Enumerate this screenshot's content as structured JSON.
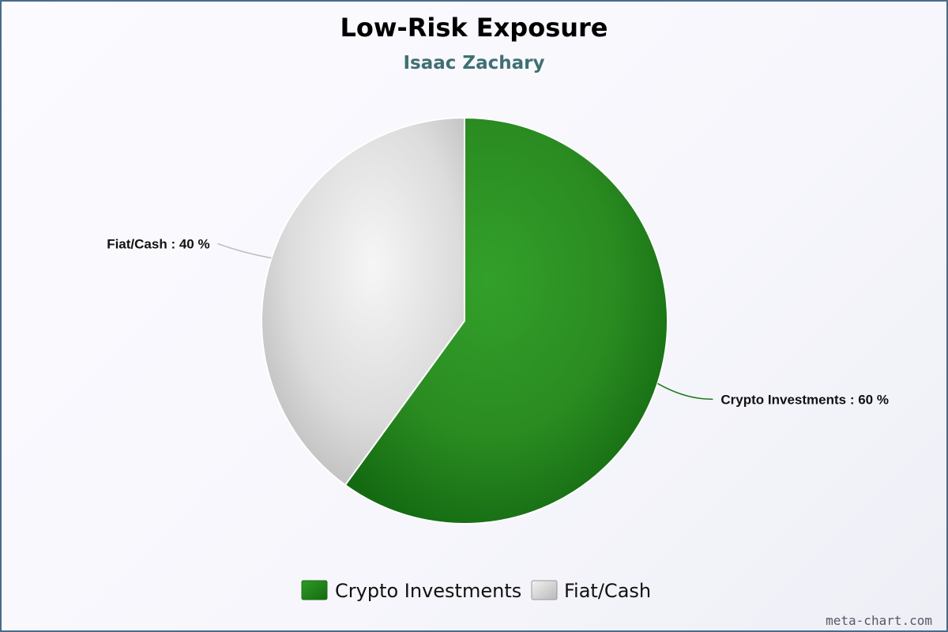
{
  "chart_data": {
    "type": "pie",
    "title": "Low-Risk Exposure",
    "subtitle": "Isaac Zachary",
    "slices": [
      {
        "name": "Crypto Investments",
        "value": 60,
        "label": "Crypto Investments : 60 %",
        "color": "#2e8b22"
      },
      {
        "name": "Fiat/Cash",
        "value": 40,
        "label": "Fiat/Cash : 40 %",
        "color": "#d8d8d8"
      }
    ],
    "legend": {
      "placement": "bottom",
      "items": [
        "Crypto Investments",
        "Fiat/Cash"
      ]
    }
  },
  "colors": {
    "subtitle": "#3f6f72",
    "border": "#4a6b8a"
  },
  "watermark": "meta-chart.com"
}
